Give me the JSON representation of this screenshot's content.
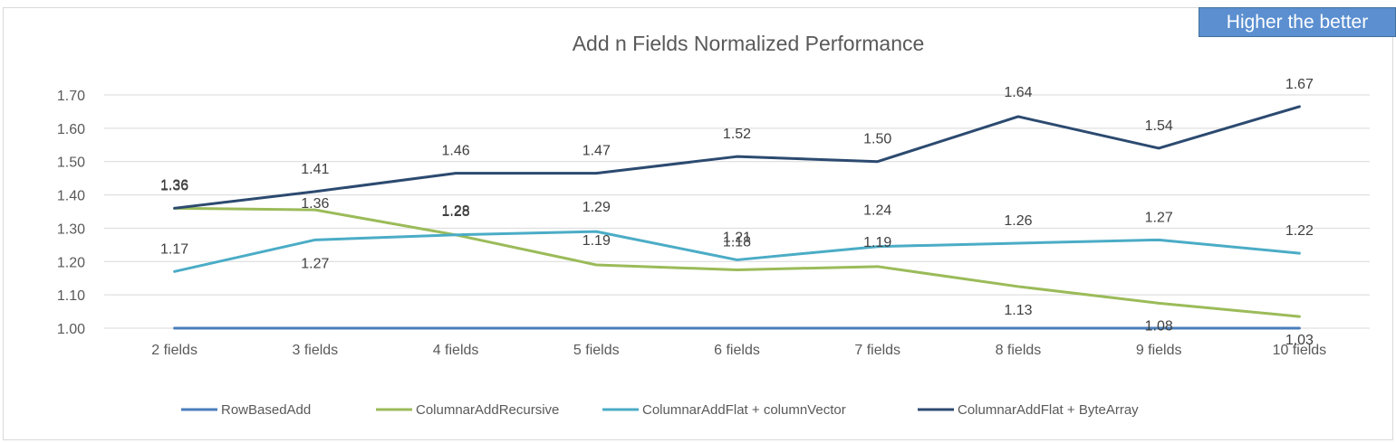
{
  "badge": {
    "text": "Higher the better"
  },
  "chart_data": {
    "type": "line",
    "title": "Add n Fields Normalized Performance",
    "xlabel": "",
    "ylabel": "",
    "categories": [
      "2 fields",
      "3 fields",
      "4 fields",
      "5 fields",
      "6 fields",
      "7 fields",
      "8 fields",
      "9 fields",
      "10 fields"
    ],
    "ylim": [
      1.0,
      1.7
    ],
    "yticks": [
      "1.00",
      "1.10",
      "1.20",
      "1.30",
      "1.40",
      "1.50",
      "1.60",
      "1.70"
    ],
    "grid": true,
    "legend_position": "bottom",
    "series": [
      {
        "name": "RowBasedAdd",
        "color": "#4a7ebb",
        "values": [
          1.0,
          1.0,
          1.0,
          1.0,
          1.0,
          1.0,
          1.0,
          1.0,
          1.0
        ],
        "labels": []
      },
      {
        "name": "ColumnarAddRecursive",
        "color": "#9bbb59",
        "values": [
          1.36,
          1.355,
          1.28,
          1.19,
          1.175,
          1.185,
          1.125,
          1.075,
          1.035
        ],
        "labels": [
          "1.36",
          "1.36",
          "1.28",
          "1.19",
          "1.18",
          "1.19",
          "1.13",
          "1.08",
          "1.03"
        ]
      },
      {
        "name": "ColumnarAddFlat + columnVector",
        "color": "#4bacc6",
        "values": [
          1.17,
          1.265,
          1.28,
          1.29,
          1.205,
          1.245,
          1.255,
          1.265,
          1.225
        ],
        "labels": [
          "1.17",
          "1.27",
          "1.28",
          "1.29",
          "1.21",
          "1.24",
          "1.26",
          "1.27",
          "1.22"
        ]
      },
      {
        "name": "ColumnarAddFlat + ByteArray",
        "color": "#2c4a70",
        "values": [
          1.36,
          1.41,
          1.465,
          1.465,
          1.515,
          1.5,
          1.635,
          1.54,
          1.665
        ],
        "labels": [
          "1.36",
          "1.41",
          "1.46",
          "1.47",
          "1.52",
          "1.50",
          "1.64",
          "1.54",
          "1.67"
        ]
      }
    ]
  }
}
